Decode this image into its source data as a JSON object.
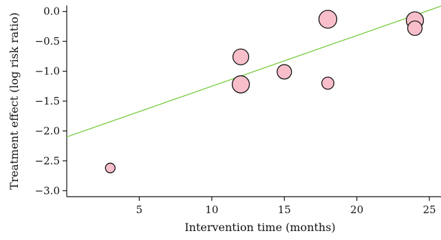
{
  "chart_data": {
    "type": "scatter",
    "title": "",
    "xlabel": "Intervention time (months)",
    "ylabel": "Treatment effect (log risk ratio)",
    "xlim": [
      0,
      25.8
    ],
    "ylim": [
      -3.1,
      0.1
    ],
    "xticks": [
      5,
      10,
      15,
      20,
      25
    ],
    "yticks": [
      0.0,
      -0.5,
      -1.0,
      -1.5,
      -2.0,
      -2.5,
      -3.0
    ],
    "xtick_labels": [
      "5",
      "10",
      "15",
      "20",
      "25"
    ],
    "ytick_labels": [
      "0.0",
      "−0.5",
      "−1.0",
      "−1.5",
      "−2.0",
      "−2.5",
      "−3.0"
    ],
    "grid": false,
    "points": [
      {
        "x": 3,
        "y": -2.62,
        "size": 0.3
      },
      {
        "x": 12,
        "y": -0.76,
        "size": 0.75
      },
      {
        "x": 12,
        "y": -1.22,
        "size": 0.85
      },
      {
        "x": 15,
        "y": -1.01,
        "size": 0.65
      },
      {
        "x": 18,
        "y": -0.13,
        "size": 0.9
      },
      {
        "x": 18,
        "y": -1.2,
        "size": 0.48
      },
      {
        "x": 24,
        "y": -0.15,
        "size": 0.85
      },
      {
        "x": 24,
        "y": -0.28,
        "size": 0.65
      }
    ],
    "regression_line": {
      "x": [
        0,
        25.8
      ],
      "y": [
        -2.1,
        0.09
      ]
    },
    "colors": {
      "point_fill": "#f8bfcb",
      "point_stroke": "#111111",
      "line": "#7dcf4a",
      "axis": "#111111"
    }
  }
}
